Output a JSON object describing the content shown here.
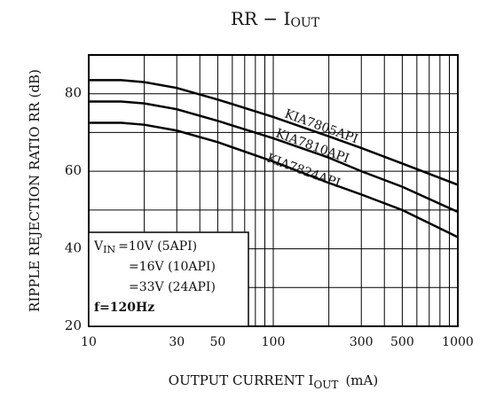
{
  "chart_data": {
    "type": "line",
    "title": "RR − I",
    "title_sub": "OUT",
    "x_label": "OUTPUT CURRENT I",
    "x_label_sub": "OUT",
    "x_label_unit": "(mA)",
    "y_label": "RIPPLE REJECTION RATIO RR (dB)",
    "x": [
      10,
      15,
      20,
      30,
      50,
      100,
      200,
      300,
      500,
      1000
    ],
    "series": [
      {
        "name": "KIA7805API",
        "color": "#000000",
        "values": [
          83.5,
          83.5,
          83,
          81.5,
          78.5,
          74,
          69,
          66,
          62,
          56.5
        ]
      },
      {
        "name": "KIA7810API",
        "color": "#000000",
        "values": [
          78,
          78,
          77.5,
          76,
          73,
          68.5,
          63.5,
          60,
          56,
          49.5
        ]
      },
      {
        "name": "KIA7824API",
        "color": "#000000",
        "values": [
          72.5,
          72.5,
          72,
          70.5,
          67.5,
          62.5,
          57,
          54,
          50,
          43
        ]
      }
    ],
    "xlim": [
      10,
      1000
    ],
    "xticks": [
      10,
      30,
      50,
      100,
      300,
      500,
      1000
    ],
    "xlog": true,
    "xgrid": [
      20,
      30,
      40,
      50,
      60,
      70,
      80,
      90,
      100,
      200,
      300,
      400,
      500,
      600,
      700,
      800,
      900
    ],
    "ylim": [
      20,
      90
    ],
    "yticks": [
      20,
      40,
      60,
      80
    ],
    "ygrid": [
      30,
      40,
      50,
      60,
      70,
      80
    ],
    "legend_v": "V",
    "legend_v_sub": "IN",
    "legend_lines": [
      "=10V (5API)",
      "=16V (10API)",
      "=33V (24API)",
      "f=120Hz"
    ]
  }
}
